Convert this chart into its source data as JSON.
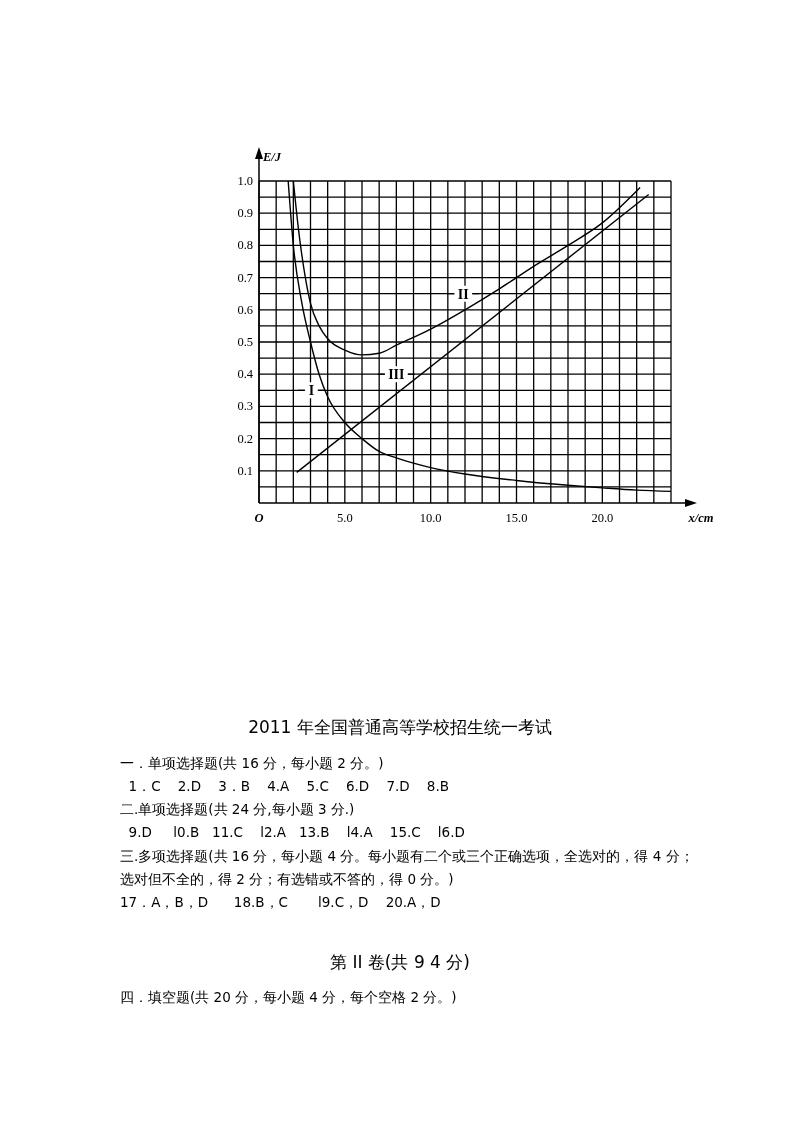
{
  "chart_data": {
    "type": "line",
    "xlabel": "x/cm",
    "ylabel": "E/J",
    "xlim": [
      0,
      24
    ],
    "ylim": [
      0,
      1.0
    ],
    "xticks": [
      {
        "value": 0,
        "label": "O"
      },
      {
        "value": 1,
        "label": null
      },
      {
        "value": 2,
        "label": null
      },
      {
        "value": 3,
        "label": null
      },
      {
        "value": 4,
        "label": null
      },
      {
        "value": 5,
        "label": "5.0"
      },
      {
        "value": 6,
        "label": null
      },
      {
        "value": 7,
        "label": null
      },
      {
        "value": 8,
        "label": null
      },
      {
        "value": 9,
        "label": null
      },
      {
        "value": 10,
        "label": "10.0"
      },
      {
        "value": 11,
        "label": null
      },
      {
        "value": 12,
        "label": null
      },
      {
        "value": 13,
        "label": null
      },
      {
        "value": 14,
        "label": null
      },
      {
        "value": 15,
        "label": "15.0"
      },
      {
        "value": 16,
        "label": null
      },
      {
        "value": 17,
        "label": null
      },
      {
        "value": 18,
        "label": null
      },
      {
        "value": 19,
        "label": null
      },
      {
        "value": 20,
        "label": "20.0"
      },
      {
        "value": 21,
        "label": null
      },
      {
        "value": 22,
        "label": null
      },
      {
        "value": 23,
        "label": null
      },
      {
        "value": 24,
        "label": null
      }
    ],
    "yticks": [
      {
        "value": 0.05,
        "label": null
      },
      0.1,
      {
        "value": 0.15,
        "label": null
      },
      0.2,
      {
        "value": 0.25,
        "label": null
      },
      0.3,
      {
        "value": 0.35,
        "label": null
      },
      0.4,
      {
        "value": 0.45,
        "label": null
      },
      0.5,
      {
        "value": 0.55,
        "label": null
      },
      0.6,
      {
        "value": 0.65,
        "label": null
      },
      0.7,
      {
        "value": 0.75,
        "label": null
      },
      0.8,
      {
        "value": 0.85,
        "label": null
      },
      0.9,
      {
        "value": 0.95,
        "label": null
      },
      {
        "value": 1.0,
        "label": "1.0"
      }
    ],
    "grid": true,
    "marker": "none",
    "line_style": "solid",
    "series": [
      {
        "color": "#000000",
        "x": [
          1.7,
          2.0,
          2.5,
          3.0,
          3.5,
          4,
          5,
          6,
          7,
          8,
          10,
          12,
          15,
          18,
          20,
          22,
          24
        ],
        "values": [
          1.0,
          0.8,
          0.62,
          0.5,
          0.4,
          0.33,
          0.25,
          0.2,
          0.16,
          0.14,
          0.11,
          0.09,
          0.07,
          0.055,
          0.047,
          0.04,
          0.036
        ]
      },
      {
        "color": "#000000",
        "x": [
          2.0,
          2.3,
          2.7,
          3.0,
          3.5,
          4,
          5,
          6,
          7,
          8,
          10,
          12,
          14,
          16,
          18,
          20,
          22.2
        ],
        "values": [
          1.0,
          0.85,
          0.7,
          0.62,
          0.55,
          0.51,
          0.475,
          0.46,
          0.465,
          0.49,
          0.54,
          0.6,
          0.665,
          0.735,
          0.8,
          0.87,
          0.98
        ]
      },
      {
        "color": "#000000",
        "x": [
          2.2,
          22.7
        ],
        "values": [
          0.095,
          0.958
        ]
      }
    ],
    "annotations": [
      {
        "text": "I",
        "x": 3.05,
        "y": 0.35
      },
      {
        "text": "II",
        "x": 11.9,
        "y": 0.65
      },
      {
        "text": "III",
        "x": 8.0,
        "y": 0.4
      },
      "2011 年全国普通高等学校招生统一考试",
      "一．单项选择题(共 16 分，每小题 2 分。)",
      "  1．C    2.D    3．B    4.A    5.C    6.D    7.D    8.B",
      "二.单项选择题(共 24 分,每小题 3 分.)",
      "  9.D     l0.B   11.C    l2.A   13.B    l4.A    15.C    l6.D",
      "三.多项选择题(共 16 分，每小题 4 分。每小题有二个或三个正确选项，全选对的，得 4 分；",
      "选对但不全的，得 2 分；有选错或不答的，得 0 分。)",
      "17．A，B，D      18.B，C       l9.C，D    20.A，D",
      "第 II 卷(共 9 4 分)",
      "四．填空题(共 20 分，每小题 4 分，每个空格 2 分。)"
    ]
  }
}
